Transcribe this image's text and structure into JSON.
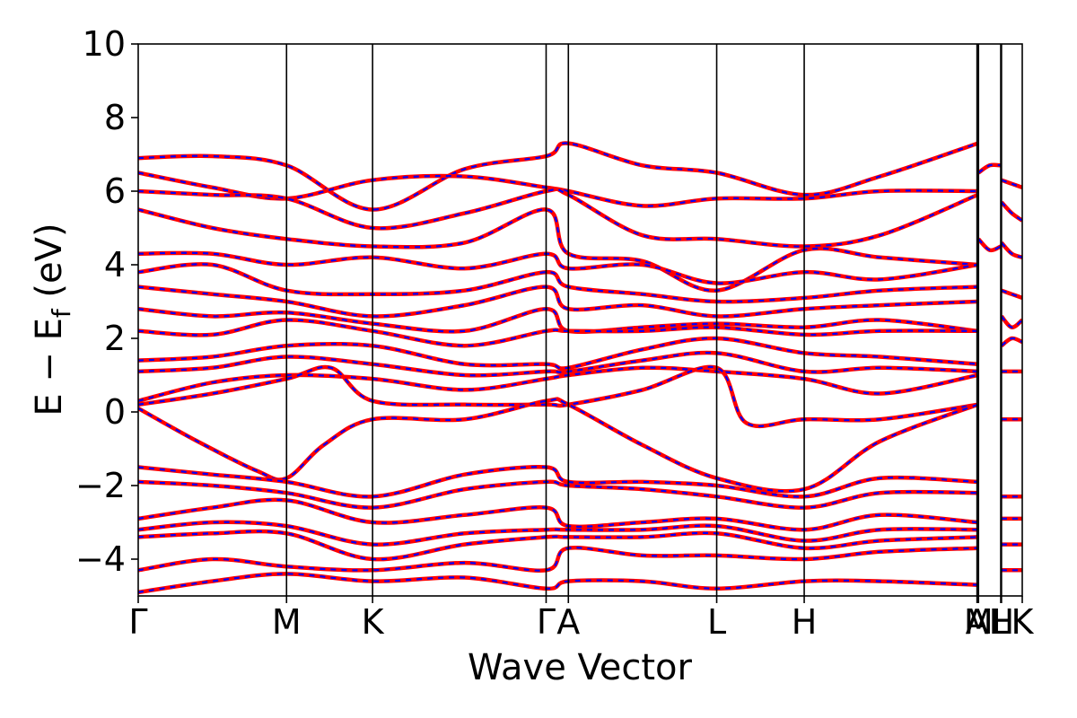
{
  "chart_data": {
    "type": "line",
    "title": "",
    "xlabel": "Wave Vector",
    "ylabel": {
      "main": "E − E",
      "sub": "f",
      "unit": " (eV)"
    },
    "ylim": [
      -5,
      10
    ],
    "yticks": [
      -4,
      -2,
      0,
      2,
      4,
      6,
      8,
      10
    ],
    "yticklabels": [
      "−4",
      "−2",
      "0",
      "2",
      "4",
      "6",
      "8",
      "10"
    ],
    "xlim": [
      0,
      5.96
    ],
    "kpoints": [
      {
        "label": "Γ",
        "x": 0.0
      },
      {
        "label": "M",
        "x": 1.0
      },
      {
        "label": "K",
        "x": 1.58
      },
      {
        "label": "Γ",
        "x": 2.75
      },
      {
        "label": "A",
        "x": 2.9
      },
      {
        "label": "L",
        "x": 3.9
      },
      {
        "label": "H",
        "x": 4.49
      },
      {
        "label": "A",
        "x": 5.655
      },
      {
        "label": "M",
        "x": 5.665
      },
      {
        "label": "L",
        "x": 5.815
      },
      {
        "label": "H",
        "x": 5.82
      },
      {
        "label": "K",
        "x": 5.96
      }
    ],
    "series_style": {
      "primary_color": "#ff0000",
      "overlay_color": "#0000ff",
      "overlay_dash": "dashed"
    },
    "bands": [
      {
        "x": [
          0,
          0.5,
          1.0,
          1.58,
          2.2,
          2.75,
          2.9,
          3.4,
          3.9,
          4.49,
          5.0,
          5.66
        ],
        "y": [
          6.9,
          6.95,
          6.7,
          5.5,
          6.6,
          6.95,
          7.3,
          6.7,
          6.5,
          5.9,
          6.4,
          7.3
        ]
      },
      {
        "x": [
          0,
          0.5,
          1.0,
          1.58,
          2.2,
          2.75,
          2.9,
          3.4,
          3.9,
          4.49,
          5.0,
          5.66
        ],
        "y": [
          6.5,
          6.1,
          5.8,
          6.3,
          6.4,
          6.1,
          6.0,
          5.6,
          5.8,
          5.8,
          6.0,
          6.0
        ]
      },
      {
        "x": [
          0,
          0.5,
          1.0,
          1.58,
          2.2,
          2.75,
          2.9,
          3.4,
          3.9,
          4.49,
          5.0,
          5.66
        ],
        "y": [
          6.0,
          5.9,
          5.8,
          5.0,
          5.4,
          6.0,
          5.9,
          4.8,
          4.7,
          4.5,
          4.8,
          5.9
        ]
      },
      {
        "x": [
          0,
          0.5,
          1.0,
          1.58,
          2.2,
          2.75,
          2.9,
          3.4,
          3.9,
          4.49,
          5.0,
          5.66
        ],
        "y": [
          5.5,
          5.0,
          4.7,
          4.5,
          4.6,
          5.5,
          4.3,
          4.1,
          3.3,
          4.4,
          4.2,
          4.0
        ]
      },
      {
        "x": [
          0,
          0.5,
          1.0,
          1.58,
          2.2,
          2.75,
          2.9,
          3.4,
          3.9,
          4.49,
          5.0,
          5.66
        ],
        "y": [
          4.3,
          4.3,
          4.0,
          4.2,
          3.9,
          4.3,
          3.9,
          4.0,
          3.5,
          3.8,
          3.6,
          4.0
        ]
      },
      {
        "x": [
          0,
          0.5,
          1.0,
          1.58,
          2.2,
          2.75,
          2.9,
          3.4,
          3.9,
          4.49,
          5.0,
          5.66
        ],
        "y": [
          3.8,
          4.0,
          3.3,
          3.2,
          3.3,
          3.8,
          3.4,
          3.2,
          3.0,
          3.1,
          3.3,
          3.4
        ]
      },
      {
        "x": [
          0,
          0.5,
          1.0,
          1.58,
          2.2,
          2.75,
          2.9,
          3.4,
          3.9,
          4.49,
          5.0,
          5.66
        ],
        "y": [
          3.4,
          3.2,
          3.0,
          2.6,
          2.9,
          3.4,
          2.8,
          2.9,
          2.6,
          2.8,
          2.9,
          3.0
        ]
      },
      {
        "x": [
          0,
          0.5,
          1.0,
          1.58,
          2.2,
          2.75,
          2.9,
          3.4,
          3.9,
          4.49,
          5.0,
          5.66
        ],
        "y": [
          2.8,
          2.6,
          2.7,
          2.4,
          2.2,
          2.8,
          2.2,
          2.3,
          2.4,
          2.3,
          2.5,
          2.2
        ]
      },
      {
        "x": [
          0,
          0.5,
          1.0,
          1.58,
          2.2,
          2.75,
          2.9,
          3.4,
          3.9,
          4.49,
          5.0,
          5.66
        ],
        "y": [
          2.2,
          2.1,
          2.5,
          2.2,
          1.8,
          2.2,
          2.2,
          2.2,
          2.3,
          2.1,
          2.2,
          2.2
        ]
      },
      {
        "x": [
          0,
          0.5,
          1.0,
          1.58,
          2.2,
          2.75,
          2.9,
          3.4,
          3.9,
          4.49,
          5.0,
          5.66
        ],
        "y": [
          1.4,
          1.5,
          1.8,
          1.8,
          1.3,
          1.3,
          1.2,
          1.7,
          2.0,
          1.6,
          1.5,
          1.3
        ]
      },
      {
        "x": [
          0,
          0.5,
          1.0,
          1.58,
          2.2,
          2.75,
          2.9,
          3.4,
          3.9,
          4.49,
          5.0,
          5.66
        ],
        "y": [
          1.1,
          1.2,
          1.5,
          1.3,
          1.0,
          1.1,
          1.1,
          1.4,
          1.6,
          1.1,
          1.2,
          1.1
        ]
      },
      {
        "x": [
          0,
          0.5,
          1.0,
          1.58,
          2.2,
          2.75,
          2.9,
          3.4,
          3.9,
          4.49,
          5.0,
          5.66
        ],
        "y": [
          0.3,
          0.8,
          1.0,
          0.9,
          0.6,
          0.9,
          1.0,
          1.2,
          1.1,
          0.9,
          0.5,
          1.0
        ]
      },
      {
        "x": [
          0,
          0.5,
          1.0,
          1.3,
          1.58,
          2.2,
          2.75,
          2.9,
          3.4,
          3.9,
          4.1,
          4.49,
          5.0,
          5.66
        ],
        "y": [
          0.2,
          0.5,
          0.9,
          1.2,
          0.3,
          0.2,
          0.2,
          0.2,
          0.6,
          1.2,
          -0.3,
          -0.2,
          -0.2,
          0.2
        ]
      },
      {
        "x": [
          0,
          0.4,
          0.8,
          1.0,
          1.25,
          1.58,
          2.2,
          2.75,
          2.9,
          3.4,
          3.9,
          4.49,
          5.0,
          5.66
        ],
        "y": [
          0.1,
          -0.8,
          -1.6,
          -1.8,
          -0.9,
          -0.2,
          -0.2,
          0.3,
          0.2,
          -0.9,
          -1.8,
          -2.1,
          -0.8,
          0.2
        ]
      },
      {
        "x": [
          0,
          0.5,
          1.0,
          1.58,
          2.2,
          2.75,
          2.9,
          3.4,
          3.9,
          4.49,
          5.0,
          5.66
        ],
        "y": [
          -1.5,
          -1.7,
          -1.9,
          -2.3,
          -1.7,
          -1.5,
          -1.9,
          -1.9,
          -2.0,
          -2.3,
          -1.8,
          -1.9
        ]
      },
      {
        "x": [
          0,
          0.5,
          1.0,
          1.58,
          2.2,
          2.75,
          2.9,
          3.4,
          3.9,
          4.49,
          5.0,
          5.66
        ],
        "y": [
          -1.9,
          -2.0,
          -2.2,
          -2.6,
          -2.1,
          -1.9,
          -2.0,
          -2.1,
          -2.3,
          -2.6,
          -2.2,
          -2.2
        ]
      },
      {
        "x": [
          0,
          0.5,
          1.0,
          1.58,
          2.2,
          2.75,
          2.9,
          3.4,
          3.9,
          4.49,
          5.0,
          5.66
        ],
        "y": [
          -2.9,
          -2.6,
          -2.4,
          -3.0,
          -2.8,
          -2.6,
          -3.1,
          -3.0,
          -2.9,
          -3.2,
          -2.8,
          -3.0
        ]
      },
      {
        "x": [
          0,
          0.5,
          1.0,
          1.58,
          2.2,
          2.75,
          2.9,
          3.4,
          3.9,
          4.49,
          5.0,
          5.66
        ],
        "y": [
          -3.2,
          -3.0,
          -3.1,
          -3.6,
          -3.3,
          -3.2,
          -3.2,
          -3.2,
          -3.1,
          -3.5,
          -3.2,
          -3.2
        ]
      },
      {
        "x": [
          0,
          0.5,
          1.0,
          1.58,
          2.2,
          2.75,
          2.9,
          3.4,
          3.9,
          4.49,
          5.0,
          5.66
        ],
        "y": [
          -3.4,
          -3.3,
          -3.3,
          -4.0,
          -3.6,
          -3.4,
          -3.4,
          -3.4,
          -3.3,
          -3.7,
          -3.5,
          -3.4
        ]
      },
      {
        "x": [
          0,
          0.5,
          1.0,
          1.58,
          2.2,
          2.75,
          2.9,
          3.4,
          3.9,
          4.49,
          5.0,
          5.66
        ],
        "y": [
          -4.3,
          -4.0,
          -4.2,
          -4.3,
          -4.1,
          -4.3,
          -3.7,
          -3.9,
          -3.9,
          -4.0,
          -3.8,
          -3.7
        ]
      },
      {
        "x": [
          0,
          0.5,
          1.0,
          1.58,
          2.2,
          2.75,
          2.9,
          3.4,
          3.9,
          4.49,
          5.0,
          5.66
        ],
        "y": [
          -4.9,
          -4.6,
          -4.4,
          -4.6,
          -4.5,
          -4.8,
          -4.6,
          -4.6,
          -4.8,
          -4.6,
          -4.6,
          -4.7
        ]
      },
      {
        "x": [
          5.665,
          5.74,
          5.815
        ],
        "y": [
          6.5,
          6.7,
          6.7
        ]
      },
      {
        "x": [
          5.665,
          5.74,
          5.815
        ],
        "y": [
          4.7,
          4.4,
          4.5
        ]
      },
      {
        "x": [
          5.82,
          5.89,
          5.96
        ],
        "y": [
          6.3,
          6.2,
          6.1
        ]
      },
      {
        "x": [
          5.82,
          5.89,
          5.96
        ],
        "y": [
          5.7,
          5.4,
          5.2
        ]
      },
      {
        "x": [
          5.82,
          5.89,
          5.96
        ],
        "y": [
          4.6,
          4.3,
          4.2
        ]
      },
      {
        "x": [
          5.82,
          5.89,
          5.96
        ],
        "y": [
          3.3,
          3.2,
          3.1
        ]
      },
      {
        "x": [
          5.82,
          5.89,
          5.96
        ],
        "y": [
          2.6,
          2.3,
          2.5
        ]
      },
      {
        "x": [
          5.82,
          5.89,
          5.96
        ],
        "y": [
          1.8,
          2.0,
          1.9
        ]
      },
      {
        "x": [
          5.82,
          5.89,
          5.96
        ],
        "y": [
          1.1,
          1.1,
          1.1
        ]
      },
      {
        "x": [
          5.82,
          5.89,
          5.96
        ],
        "y": [
          -0.2,
          -0.2,
          -0.2
        ]
      },
      {
        "x": [
          5.82,
          5.89,
          5.96
        ],
        "y": [
          -2.3,
          -2.3,
          -2.3
        ]
      },
      {
        "x": [
          5.82,
          5.89,
          5.96
        ],
        "y": [
          -2.9,
          -2.9,
          -2.9
        ]
      },
      {
        "x": [
          5.82,
          5.89,
          5.96
        ],
        "y": [
          -3.6,
          -3.6,
          -3.6
        ]
      },
      {
        "x": [
          5.82,
          5.89,
          5.96
        ],
        "y": [
          -4.3,
          -4.3,
          -4.3
        ]
      }
    ]
  }
}
